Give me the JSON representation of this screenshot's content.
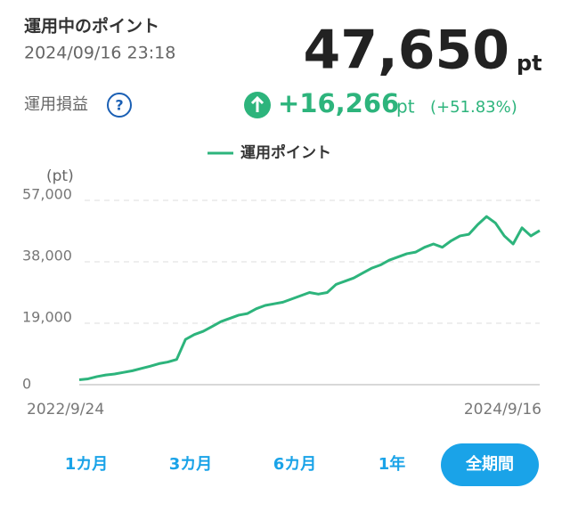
{
  "header": {
    "title": "運用中のポイント",
    "timestamp": "2024/09/16 23:18",
    "points": "47,650",
    "points_unit": "pt",
    "pl_label": "運用損益",
    "help": "?",
    "pl_value": "+16,266",
    "pl_unit": "pt",
    "pl_percent": "(+51.83%)"
  },
  "chart_data": {
    "type": "line",
    "y_label": "(pt)",
    "categories": [
      "2022/9/24",
      null,
      null,
      null,
      null,
      null,
      null,
      null,
      null,
      null,
      null,
      null,
      null,
      null,
      null,
      null,
      null,
      null,
      null,
      null,
      null,
      null,
      null,
      null,
      null,
      null,
      null,
      null,
      null,
      null,
      null,
      null,
      null,
      null,
      null,
      null,
      null,
      null,
      null,
      null,
      null,
      null,
      null,
      null,
      null,
      null,
      null,
      null,
      null,
      null,
      null,
      null,
      "2024/9/16"
    ],
    "series": [
      {
        "name": "運用ポイント",
        "color": "#2db47c",
        "values": [
          1500,
          1800,
          2500,
          3000,
          3300,
          3800,
          4300,
          5000,
          5700,
          6500,
          7000,
          7800,
          14000,
          15500,
          16500,
          18000,
          19500,
          20500,
          21500,
          22000,
          23500,
          24500,
          25000,
          25500,
          26500,
          27500,
          28500,
          28000,
          28500,
          31000,
          32000,
          33000,
          34500,
          36000,
          37000,
          38500,
          39500,
          40500,
          41000,
          42500,
          43500,
          42500,
          44500,
          46000,
          46500,
          49500,
          52000,
          50000,
          46000,
          43500,
          48500,
          46000,
          47650
        ]
      }
    ],
    "ylim": [
      0,
      57000
    ],
    "yticks": [
      0,
      {
        "value": 19000,
        "label": "19,000"
      },
      {
        "value": 38000,
        "label": "38,000"
      },
      {
        "value": 57000,
        "label": "57,000"
      }
    ],
    "grid": true
  },
  "tabs": [
    "1カ月",
    "3カ月",
    "6カ月",
    "1年",
    "全期間"
  ],
  "active_tab": 4
}
